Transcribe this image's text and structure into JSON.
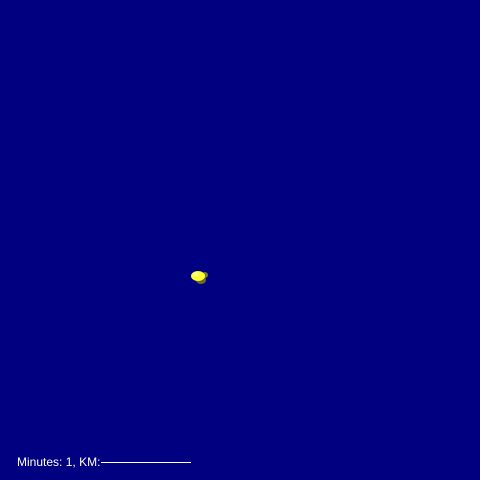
{
  "simulation": {
    "background_color": "#000080",
    "body": {
      "name": "yellow blob",
      "primary_color": "#ffff33",
      "highlight_color": "#ffff8a",
      "shadow_color": "#6b6b2a"
    }
  },
  "status": {
    "minutes_label": "Minutes:",
    "minutes_value": "1",
    "km_label": "KM:"
  }
}
